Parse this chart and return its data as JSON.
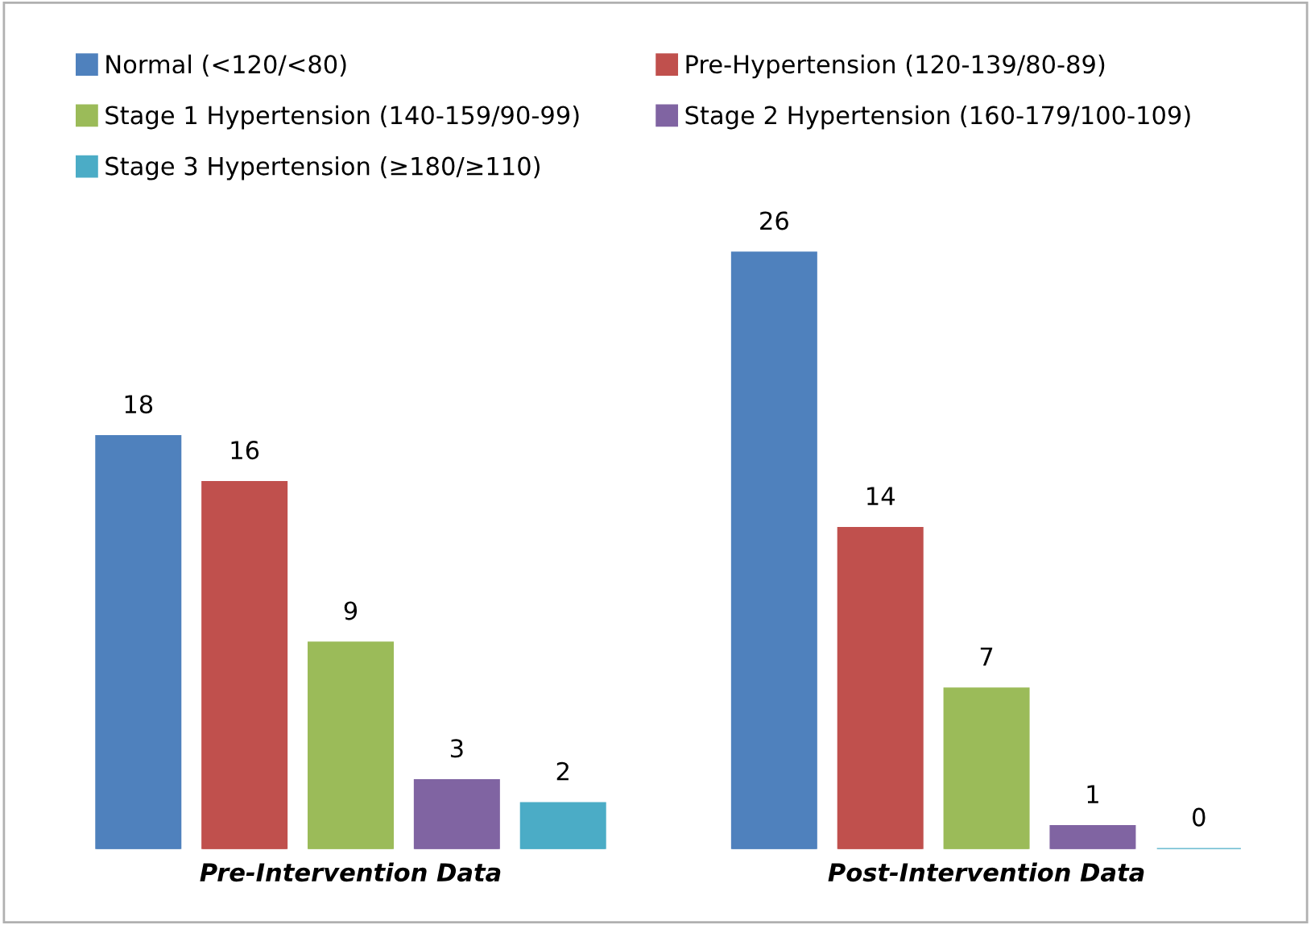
{
  "chart_data": {
    "type": "bar",
    "categories": [
      "Pre-Intervention Data",
      "Post-Intervention Data"
    ],
    "series": [
      {
        "name": "Normal (<120/<80)",
        "color": "#4f81bd",
        "values": [
          18,
          26
        ]
      },
      {
        "name": "Pre-Hypertension (120-139/80-89)",
        "color": "#c0504d",
        "values": [
          16,
          14
        ]
      },
      {
        "name": "Stage 1 Hypertension (140-159/90-99)",
        "color": "#9bbb59",
        "values": [
          9,
          7
        ]
      },
      {
        "name": "Stage 2 Hypertension (160-179/100-109)",
        "color": "#8064a2",
        "values": [
          3,
          1
        ]
      },
      {
        "name": "Stage 3 Hypertension (≥180/≥110)",
        "color": "#4bacc6",
        "values": [
          2,
          0
        ]
      }
    ],
    "ylim": [
      0,
      30
    ],
    "data_labels": true,
    "legend": "top",
    "grid": false
  }
}
